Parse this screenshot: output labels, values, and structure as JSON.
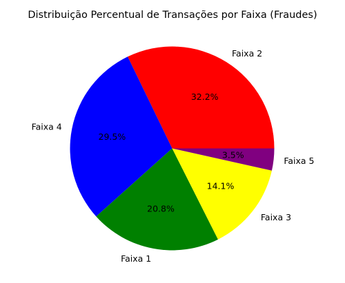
{
  "chart_data": {
    "type": "pie",
    "title": "Distribuição Percentual de Transações por Faixa (Fraudes)",
    "start_angle_deg": 0,
    "direction": "counterclockwise",
    "slices": [
      {
        "label": "Faixa 2",
        "value": 32.2,
        "pct_label": "32.2%",
        "color": "#ff0000"
      },
      {
        "label": "Faixa 4",
        "value": 29.5,
        "pct_label": "29.5%",
        "color": "#0000ff"
      },
      {
        "label": "Faixa 1",
        "value": 20.8,
        "pct_label": "20.8%",
        "color": "#008000"
      },
      {
        "label": "Faixa 3",
        "value": 14.1,
        "pct_label": "14.1%",
        "color": "#ffff00"
      },
      {
        "label": "Faixa 5",
        "value": 3.5,
        "pct_label": "3.5%",
        "color": "#800080"
      }
    ]
  }
}
